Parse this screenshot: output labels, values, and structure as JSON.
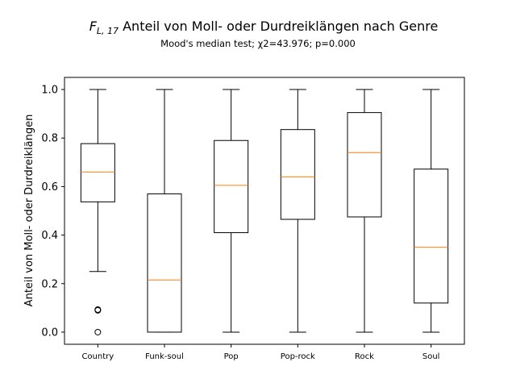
{
  "chart_data": {
    "type": "boxplot",
    "title_sym": "F",
    "title_sub": "L, 17",
    "title_text": "Anteil von Moll- oder Durdreiklängen nach Genre",
    "subtitle": "Mood's median test; χ2=43.976; p=0.000",
    "ylabel": "Anteil von Moll- oder Durdreiklängen",
    "xlabel": "",
    "ylim": [
      -0.05,
      1.05
    ],
    "yticks": [
      "0.0",
      "0.2",
      "0.4",
      "0.6",
      "0.8",
      "1.0"
    ],
    "grid": false,
    "categories": [
      "Country",
      "Funk-soul",
      "Pop",
      "Pop-rock",
      "Rock",
      "Soul"
    ],
    "boxes": [
      {
        "category": "Country",
        "whisker_low": 0.25,
        "q1": 0.537,
        "median": 0.66,
        "q3": 0.777,
        "whisker_high": 1.0,
        "outliers": [
          0.09,
          0.093,
          0.0
        ]
      },
      {
        "category": "Funk-soul",
        "whisker_low": 0.0,
        "q1": 0.0,
        "median": 0.215,
        "q3": 0.57,
        "whisker_high": 1.0,
        "outliers": []
      },
      {
        "category": "Pop",
        "whisker_low": 0.0,
        "q1": 0.41,
        "median": 0.605,
        "q3": 0.79,
        "whisker_high": 1.0,
        "outliers": []
      },
      {
        "category": "Pop-rock",
        "whisker_low": 0.0,
        "q1": 0.465,
        "median": 0.64,
        "q3": 0.835,
        "whisker_high": 1.0,
        "outliers": []
      },
      {
        "category": "Rock",
        "whisker_low": 0.0,
        "q1": 0.475,
        "median": 0.74,
        "q3": 0.905,
        "whisker_high": 1.0,
        "outliers": []
      },
      {
        "category": "Soul",
        "whisker_low": 0.0,
        "q1": 0.12,
        "median": 0.35,
        "q3": 0.672,
        "whisker_high": 1.0,
        "outliers": []
      }
    ],
    "colors": {
      "box": "#000000",
      "median": "#ff7f0e",
      "background": "#ffffff"
    }
  }
}
